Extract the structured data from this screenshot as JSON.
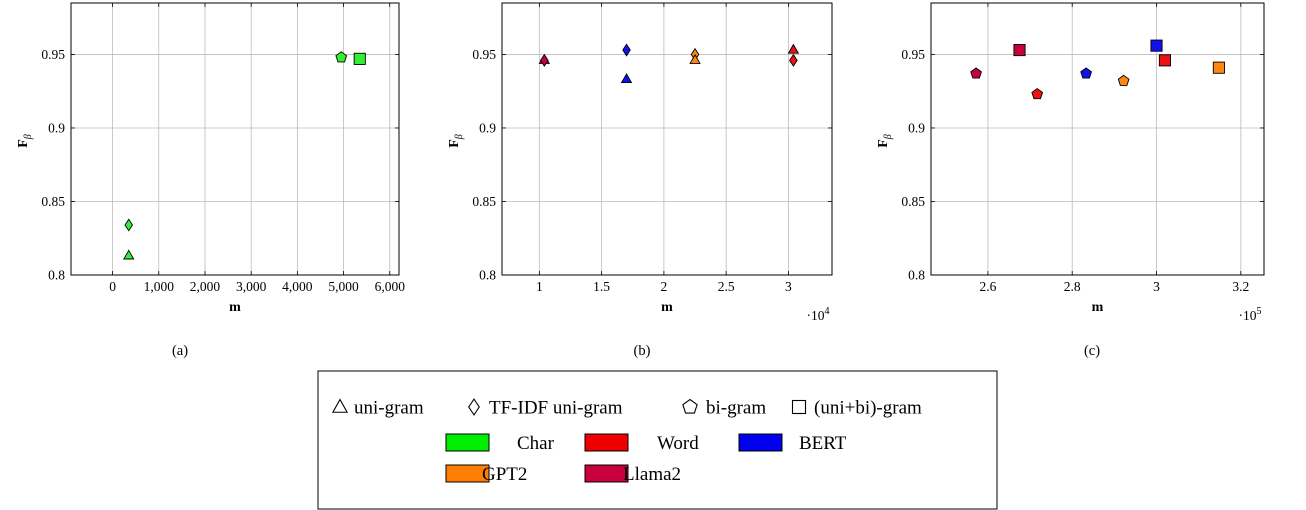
{
  "chart_data": [
    {
      "type": "scatter",
      "caption": "(a)",
      "xlabel": "m",
      "ylabel": "F",
      "ylabel_sub": "β",
      "xlim": [
        -900,
        6200
      ],
      "ylim": [
        0.8,
        0.985
      ],
      "x_ticks": [
        0,
        1000,
        2000,
        3000,
        4000,
        5000,
        6000
      ],
      "x_tick_labels": [
        "0",
        "1,000",
        "2,000",
        "3,000",
        "4,000",
        "5,000",
        "6,000"
      ],
      "x_scale_label": "",
      "y_ticks": [
        0.8,
        0.85,
        0.9,
        0.95
      ],
      "y_tick_labels": [
        "0.8",
        "0.85",
        "0.9",
        "0.95"
      ],
      "grid": true,
      "points": [
        {
          "model": "Char",
          "feature": "uni-gram",
          "x": 350,
          "y": 0.813
        },
        {
          "model": "Char",
          "feature": "TF-IDF uni-gram",
          "x": 350,
          "y": 0.834
        },
        {
          "model": "Char",
          "feature": "bi-gram",
          "x": 4950,
          "y": 0.948
        },
        {
          "model": "Char",
          "feature": "(uni+bi)-gram",
          "x": 5350,
          "y": 0.947
        }
      ]
    },
    {
      "type": "scatter",
      "caption": "(b)",
      "xlabel": "m",
      "ylabel": "F",
      "ylabel_sub": "β",
      "xlim": [
        0.7,
        3.35
      ],
      "ylim": [
        0.8,
        0.985
      ],
      "x_ticks": [
        1,
        1.5,
        2,
        2.5,
        3
      ],
      "x_tick_labels": [
        "1",
        "1.5",
        "2",
        "2.5",
        "3"
      ],
      "x_scale_label": "·10",
      "x_scale_exp": "4",
      "y_ticks": [
        0.8,
        0.85,
        0.9,
        0.95
      ],
      "y_tick_labels": [
        "0.8",
        "0.85",
        "0.9",
        "0.95"
      ],
      "grid": true,
      "points": [
        {
          "model": "Word",
          "feature": "uni-gram",
          "x": 1.04,
          "y": 0.946
        },
        {
          "model": "Llama2",
          "feature": "TF-IDF uni-gram",
          "x": 1.04,
          "y": 0.946
        },
        {
          "model": "BERT",
          "feature": "TF-IDF uni-gram",
          "x": 1.7,
          "y": 0.953
        },
        {
          "model": "BERT",
          "feature": "uni-gram",
          "x": 1.7,
          "y": 0.933
        },
        {
          "model": "GPT2",
          "feature": "TF-IDF uni-gram",
          "x": 2.25,
          "y": 0.95
        },
        {
          "model": "GPT2",
          "feature": "uni-gram",
          "x": 2.25,
          "y": 0.946
        },
        {
          "model": "Word",
          "feature": "uni-gram",
          "x": 3.04,
          "y": 0.953
        },
        {
          "model": "Word",
          "feature": "TF-IDF uni-gram",
          "x": 3.04,
          "y": 0.946
        }
      ]
    },
    {
      "type": "scatter",
      "caption": "(c)",
      "xlabel": "m",
      "ylabel": "F",
      "ylabel_sub": "β",
      "xlim": [
        2.465,
        3.255
      ],
      "ylim": [
        0.8,
        0.985
      ],
      "x_ticks": [
        2.6,
        2.8,
        3,
        3.2
      ],
      "x_tick_labels": [
        "2.6",
        "2.8",
        "3",
        "3.2"
      ],
      "x_scale_label": "·10",
      "x_scale_exp": "5",
      "y_ticks": [
        0.8,
        0.85,
        0.9,
        0.95
      ],
      "y_tick_labels": [
        "0.8",
        "0.85",
        "0.9",
        "0.95"
      ],
      "grid": true,
      "points": [
        {
          "model": "Llama2",
          "feature": "bi-gram",
          "x": 2.572,
          "y": 0.937
        },
        {
          "model": "Llama2",
          "feature": "(uni+bi)-gram",
          "x": 2.675,
          "y": 0.953
        },
        {
          "model": "Word",
          "feature": "bi-gram",
          "x": 2.717,
          "y": 0.923
        },
        {
          "model": "BERT",
          "feature": "bi-gram",
          "x": 2.833,
          "y": 0.937
        },
        {
          "model": "GPT2",
          "feature": "bi-gram",
          "x": 2.922,
          "y": 0.932
        },
        {
          "model": "BERT",
          "feature": "(uni+bi)-gram",
          "x": 3.0,
          "y": 0.956
        },
        {
          "model": "Word",
          "feature": "(uni+bi)-gram",
          "x": 3.02,
          "y": 0.946
        },
        {
          "model": "GPT2",
          "feature": "(uni+bi)-gram",
          "x": 3.148,
          "y": 0.941
        }
      ]
    }
  ],
  "legend": {
    "markers": [
      {
        "shape": "triangle",
        "label": "uni-gram"
      },
      {
        "shape": "diamond",
        "label": "TF-IDF uni-gram"
      },
      {
        "shape": "pentagon",
        "label": "bi-gram"
      },
      {
        "shape": "square",
        "label": "(uni+bi)-gram"
      }
    ],
    "models": [
      {
        "label": "Char",
        "color": "#00ee00"
      },
      {
        "label": "Word",
        "color": "#ee0000"
      },
      {
        "label": "BERT",
        "color": "#0000ee"
      },
      {
        "label": "GPT2",
        "color": "#ff7f00"
      },
      {
        "label": "Llama2",
        "color": "#c8003c"
      }
    ]
  },
  "colors": {
    "Char": "#33ee33",
    "Word": "#ee1111",
    "BERT": "#1111ee",
    "GPT2": "#ff8811",
    "Llama2": "#c8003c"
  }
}
